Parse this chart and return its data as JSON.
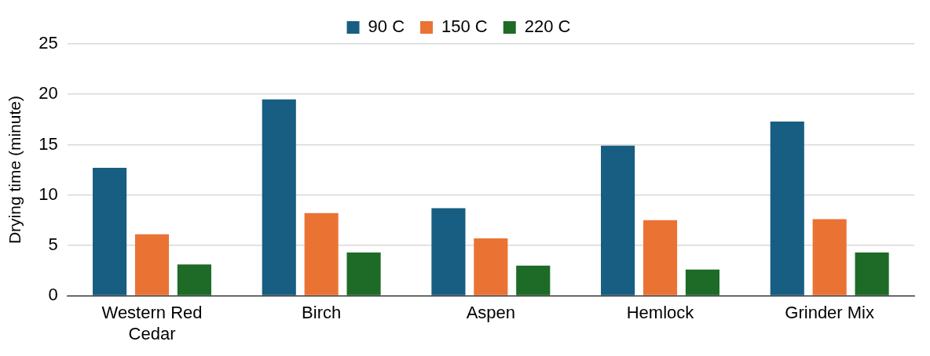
{
  "chart_data": {
    "type": "bar",
    "ylabel": "Drying time (minute)",
    "categories": [
      "Western Red Cedar",
      "Birch",
      "Aspen",
      "Hemlock",
      "Grinder Mix"
    ],
    "series": [
      {
        "name": "90 C",
        "color": "#175e82",
        "values": [
          12.7,
          19.5,
          8.7,
          14.9,
          17.3
        ]
      },
      {
        "name": "150 C",
        "color": "#ea7334",
        "values": [
          6.1,
          8.2,
          5.7,
          7.5,
          7.6
        ]
      },
      {
        "name": "220 C",
        "color": "#1d6b27",
        "values": [
          3.1,
          4.3,
          3.0,
          2.6,
          4.3
        ]
      }
    ],
    "ylim": [
      0,
      25
    ],
    "yticks": [
      0,
      5,
      10,
      15,
      20,
      25
    ],
    "grid": "y",
    "legend": "top"
  }
}
